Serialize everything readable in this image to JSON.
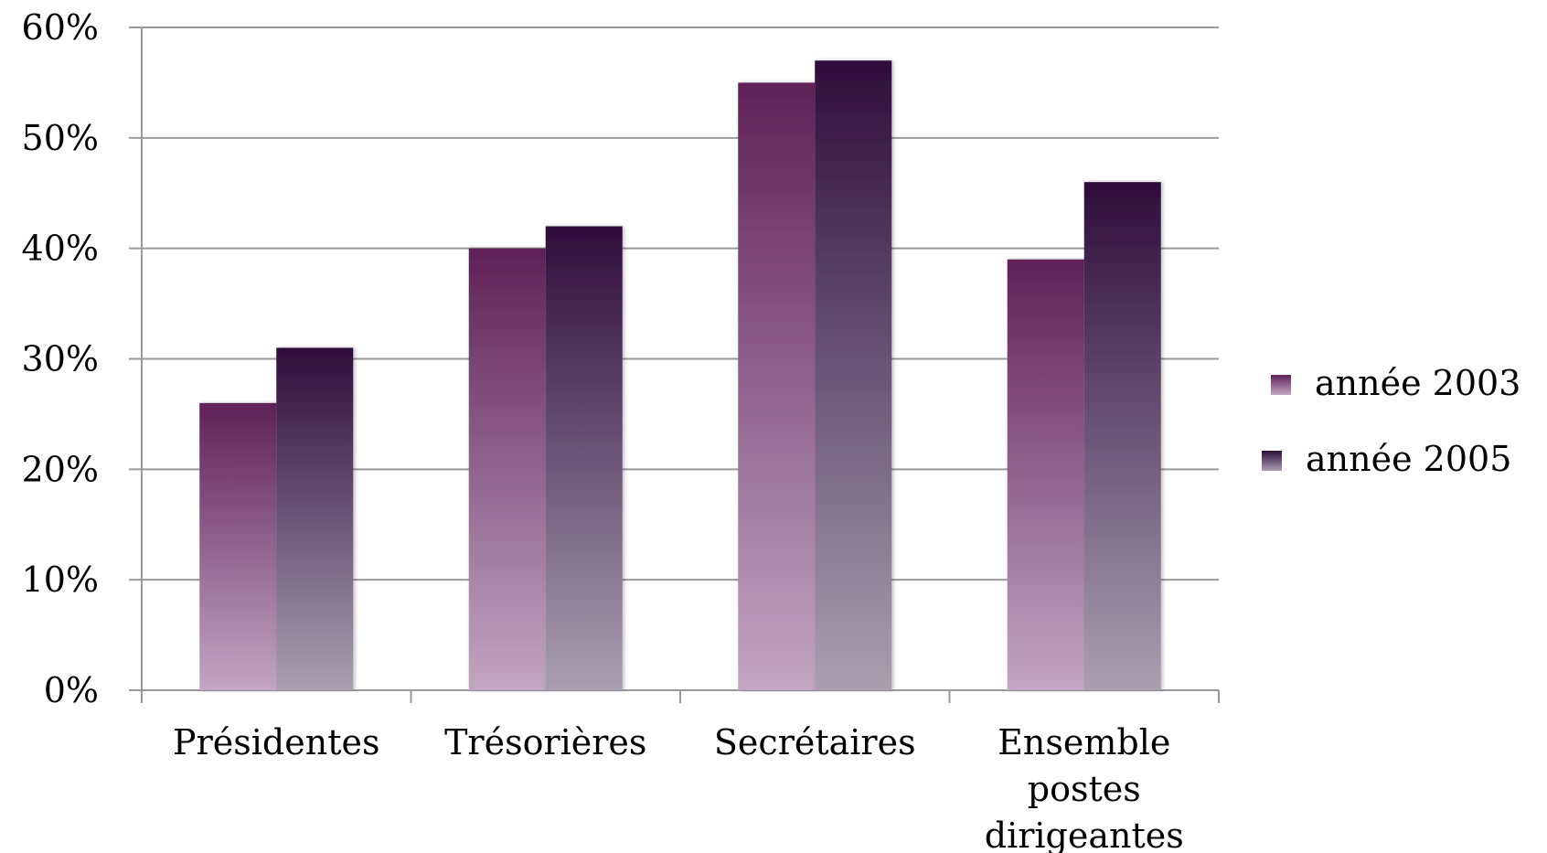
{
  "chart_data": {
    "type": "bar",
    "categories": [
      [
        "Présidentes"
      ],
      [
        "Trésorières"
      ],
      [
        "Secrétaires"
      ],
      [
        "Ensemble",
        "postes",
        "dirigeantes"
      ]
    ],
    "series": [
      {
        "name": "année 2003",
        "values": [
          26,
          40,
          55,
          39
        ],
        "color_top": "#5f2158",
        "color_bottom": "#c2a6c2"
      },
      {
        "name": "année 2005",
        "values": [
          31,
          42,
          57,
          46
        ],
        "color_top": "#2e0d3c",
        "color_bottom": "#a99fb0"
      }
    ],
    "y_ticks": [
      "0%",
      "10%",
      "20%",
      "30%",
      "40%",
      "50%",
      "60%"
    ],
    "ylim": [
      0,
      60
    ],
    "grid": true,
    "legend_position": "right",
    "title": "",
    "xlabel": "",
    "ylabel": ""
  }
}
